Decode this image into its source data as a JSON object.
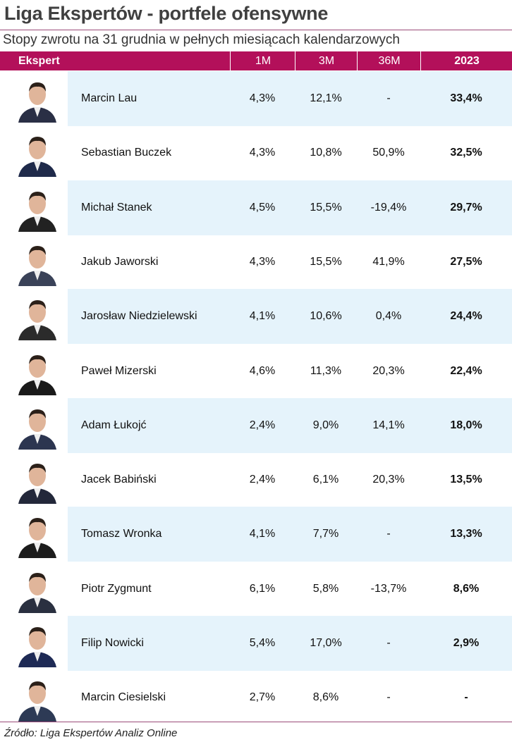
{
  "title": "Liga Ekspertów - portfele ofensywne",
  "subtitle": "Stopy zwrotu na 31 grudnia w pełnych miesiącach kalendarzowych",
  "source": "Źródło: Liga Ekspertów Analiz Online",
  "colors": {
    "header": "#b3105a",
    "row_alt": "#e5f3fb",
    "rule": "#9b4a78"
  },
  "chart_data": {
    "type": "table",
    "columns": [
      "Ekspert",
      "1M",
      "3M",
      "36M",
      "2023"
    ],
    "rows": [
      {
        "name": "Marcin Lau",
        "m1": "4,3%",
        "m3": "12,1%",
        "m36": "-",
        "y2023": "33,4%"
      },
      {
        "name": "Sebastian Buczek",
        "m1": "4,3%",
        "m3": "10,8%",
        "m36": "50,9%",
        "y2023": "32,5%"
      },
      {
        "name": "Michał Stanek",
        "m1": "4,5%",
        "m3": "15,5%",
        "m36": "-19,4%",
        "y2023": "29,7%"
      },
      {
        "name": "Jakub Jaworski",
        "m1": "4,3%",
        "m3": "15,5%",
        "m36": "41,9%",
        "y2023": "27,5%"
      },
      {
        "name": "Jarosław Niedzielewski",
        "m1": "4,1%",
        "m3": "10,6%",
        "m36": "0,4%",
        "y2023": "24,4%"
      },
      {
        "name": "Paweł Mizerski",
        "m1": "4,6%",
        "m3": "11,3%",
        "m36": "20,3%",
        "y2023": "22,4%"
      },
      {
        "name": "Adam Łukojć",
        "m1": "2,4%",
        "m3": "9,0%",
        "m36": "14,1%",
        "y2023": "18,0%"
      },
      {
        "name": "Jacek Babiński",
        "m1": "2,4%",
        "m3": "6,1%",
        "m36": "20,3%",
        "y2023": "13,5%"
      },
      {
        "name": "Tomasz Wronka",
        "m1": "4,1%",
        "m3": "7,7%",
        "m36": "-",
        "y2023": "13,3%"
      },
      {
        "name": "Piotr Zygmunt",
        "m1": "6,1%",
        "m3": "5,8%",
        "m36": "-13,7%",
        "y2023": "8,6%"
      },
      {
        "name": "Filip Nowicki",
        "m1": "5,4%",
        "m3": "17,0%",
        "m36": "-",
        "y2023": "2,9%"
      },
      {
        "name": "Marcin Ciesielski",
        "m1": "2,7%",
        "m3": "8,6%",
        "m36": "-",
        "y2023": "-"
      }
    ]
  }
}
